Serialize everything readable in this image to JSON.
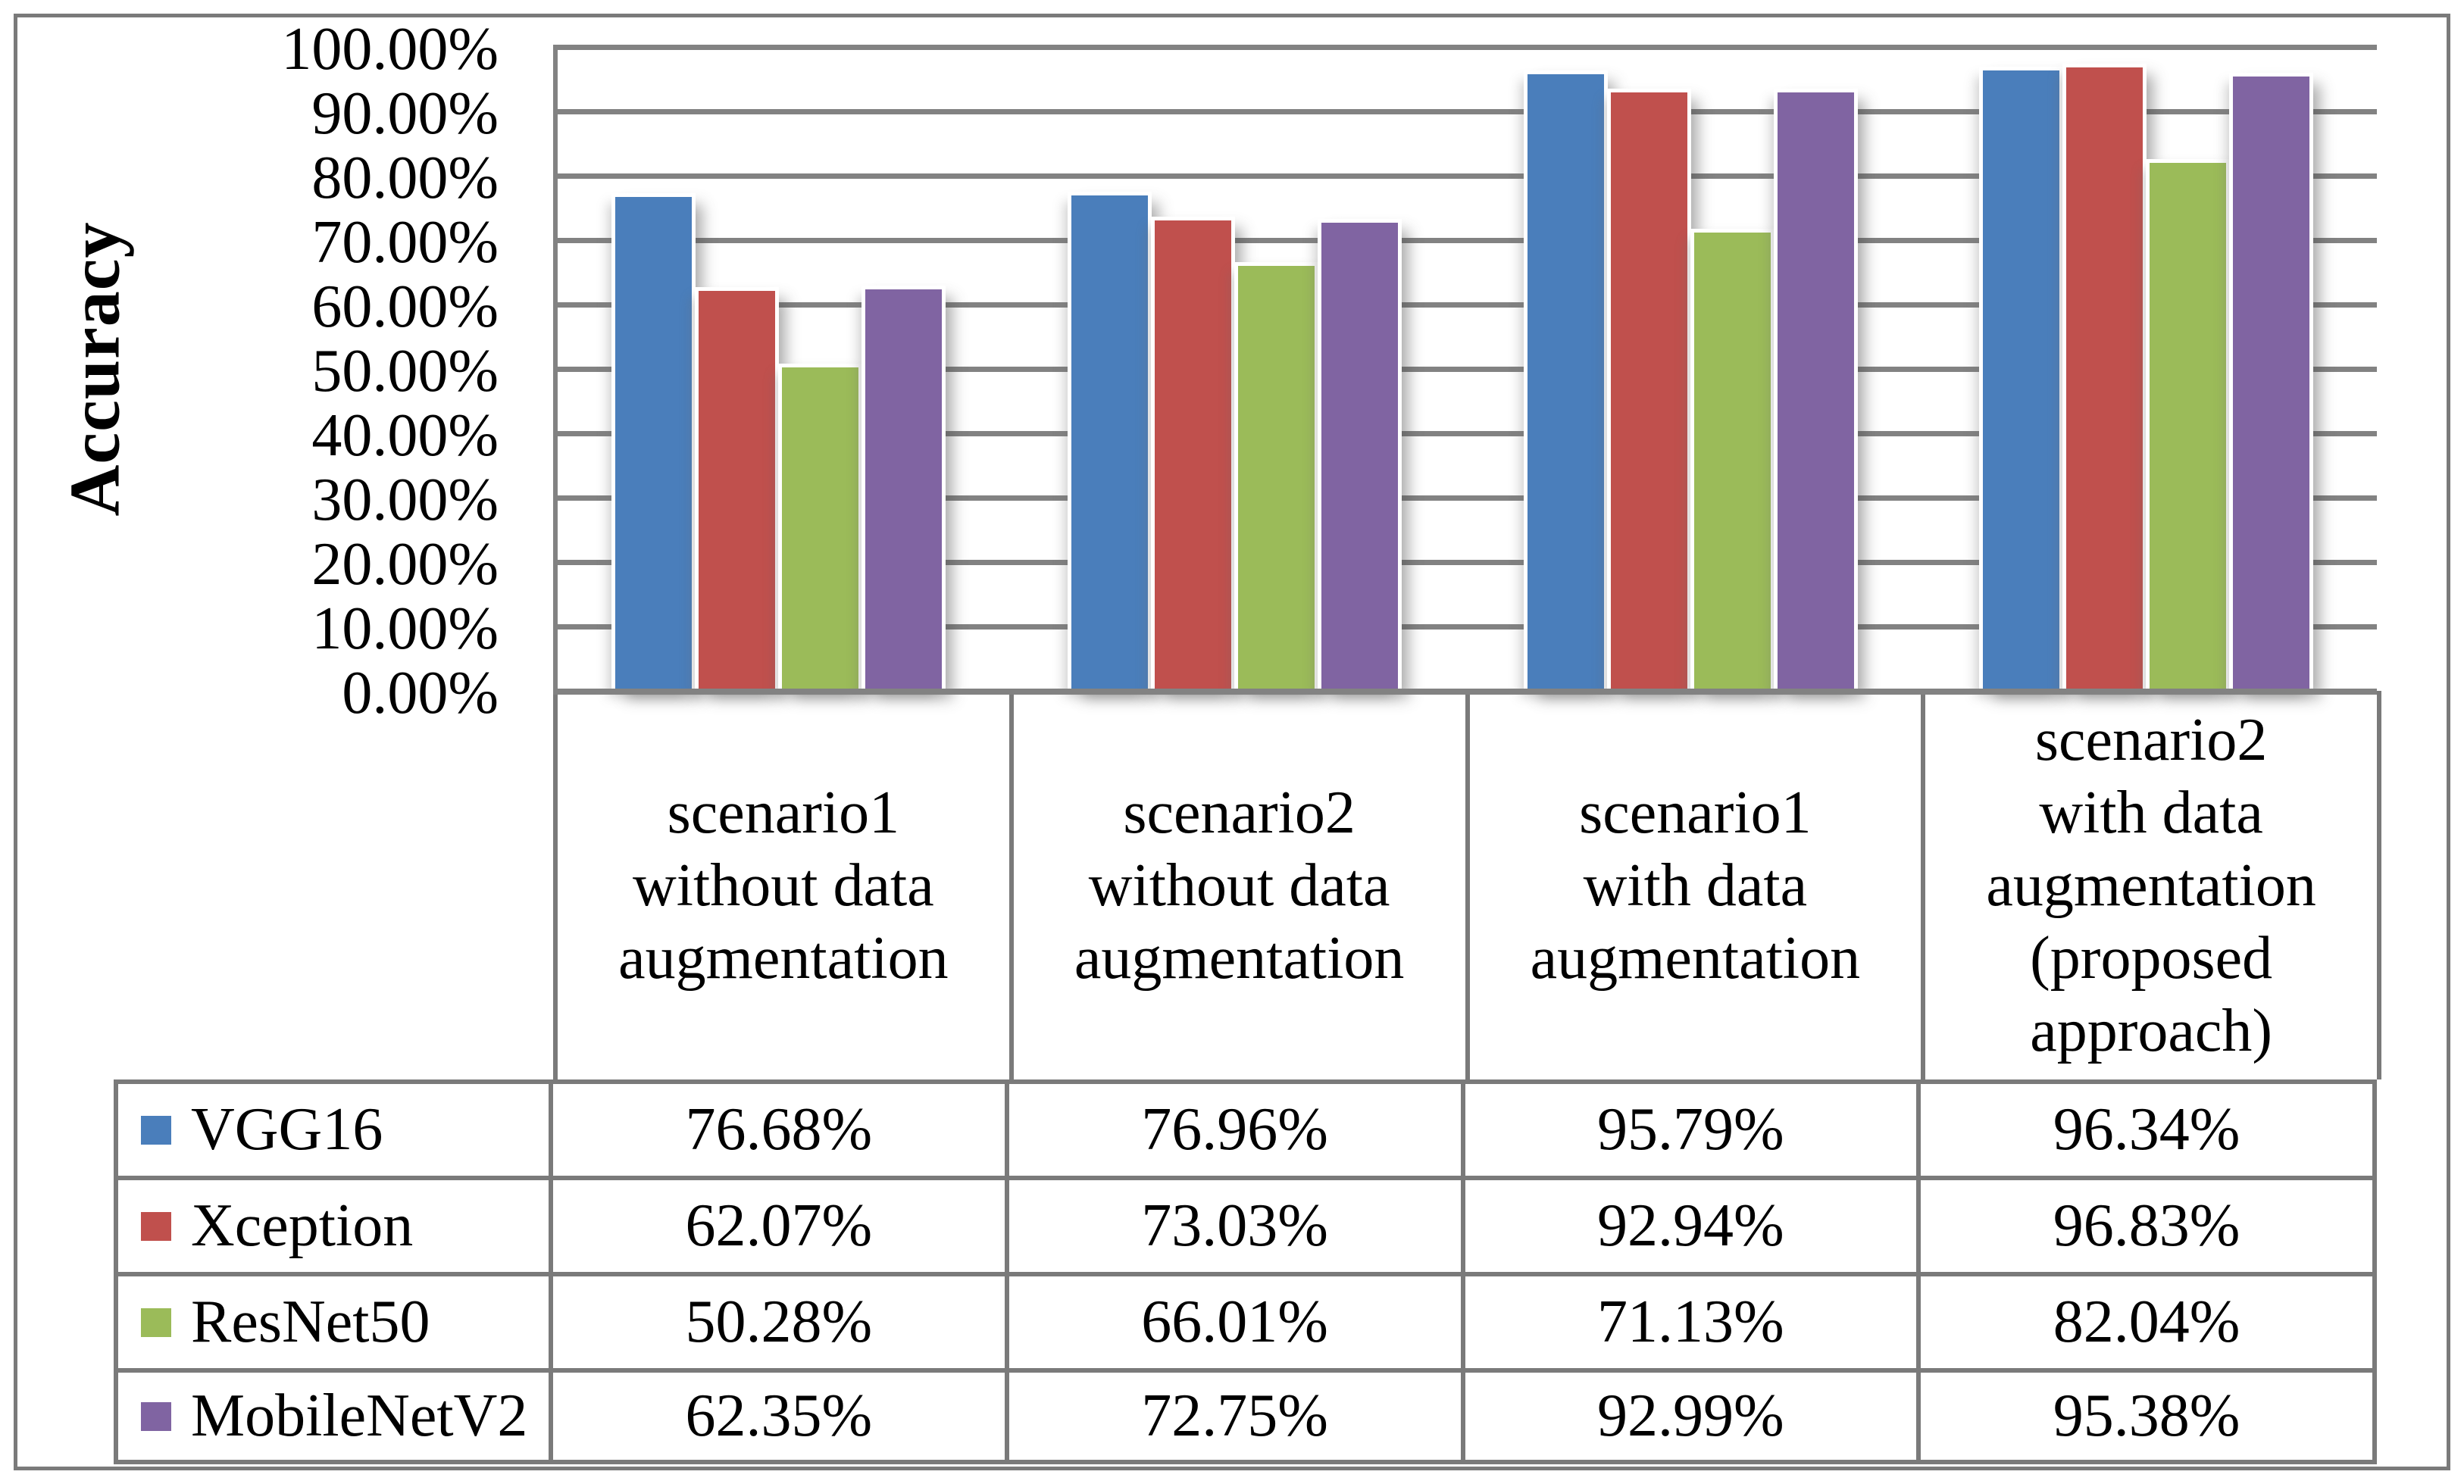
{
  "chart_data": {
    "type": "bar",
    "title": "",
    "ylabel": "Accuracy",
    "xlabel": "",
    "ylim": [
      0,
      100
    ],
    "grid": true,
    "legend_position": "table-rows-left",
    "y_ticks": [
      "100.00%",
      "90.00%",
      "80.00%",
      "70.00%",
      "60.00%",
      "50.00%",
      "40.00%",
      "30.00%",
      "20.00%",
      "10.00%",
      "0.00%"
    ],
    "categories": [
      "scenario1 without data augmentation",
      "scenario2 without data augmentation",
      "scenario1 with data augmentation",
      "scenario2 with data augmentation (proposed approach)"
    ],
    "category_lines": [
      [
        "scenario1",
        "without data",
        "augmentation"
      ],
      [
        "scenario2",
        "without data",
        "augmentation"
      ],
      [
        "scenario1",
        "with data",
        "augmentation"
      ],
      [
        "scenario2",
        "with data",
        "augmentation",
        "(proposed",
        "approach)"
      ]
    ],
    "series": [
      {
        "name": "VGG16",
        "color": "#4A7EBB",
        "values": [
          76.68,
          76.96,
          95.79,
          96.34
        ],
        "labels": [
          "76.68%",
          "76.96%",
          "95.79%",
          "96.34%"
        ]
      },
      {
        "name": "Xception",
        "color": "#C0504D",
        "values": [
          62.07,
          73.03,
          92.94,
          96.83
        ],
        "labels": [
          "62.07%",
          "73.03%",
          "92.94%",
          "96.83%"
        ]
      },
      {
        "name": "ResNet50",
        "color": "#9BBB59",
        "values": [
          50.28,
          66.01,
          71.13,
          82.04
        ],
        "labels": [
          "50.28%",
          "66.01%",
          "71.13%",
          "82.04%"
        ]
      },
      {
        "name": "MobileNetV2",
        "color": "#8064A2",
        "values": [
          62.35,
          72.75,
          92.99,
          95.38
        ],
        "labels": [
          "62.35%",
          "72.75%",
          "92.99%",
          "95.38%"
        ]
      }
    ],
    "colors": {
      "gridline": "#828282",
      "table_border": "#7a7a7a",
      "text": "#000000",
      "background": "#ffffff"
    }
  }
}
